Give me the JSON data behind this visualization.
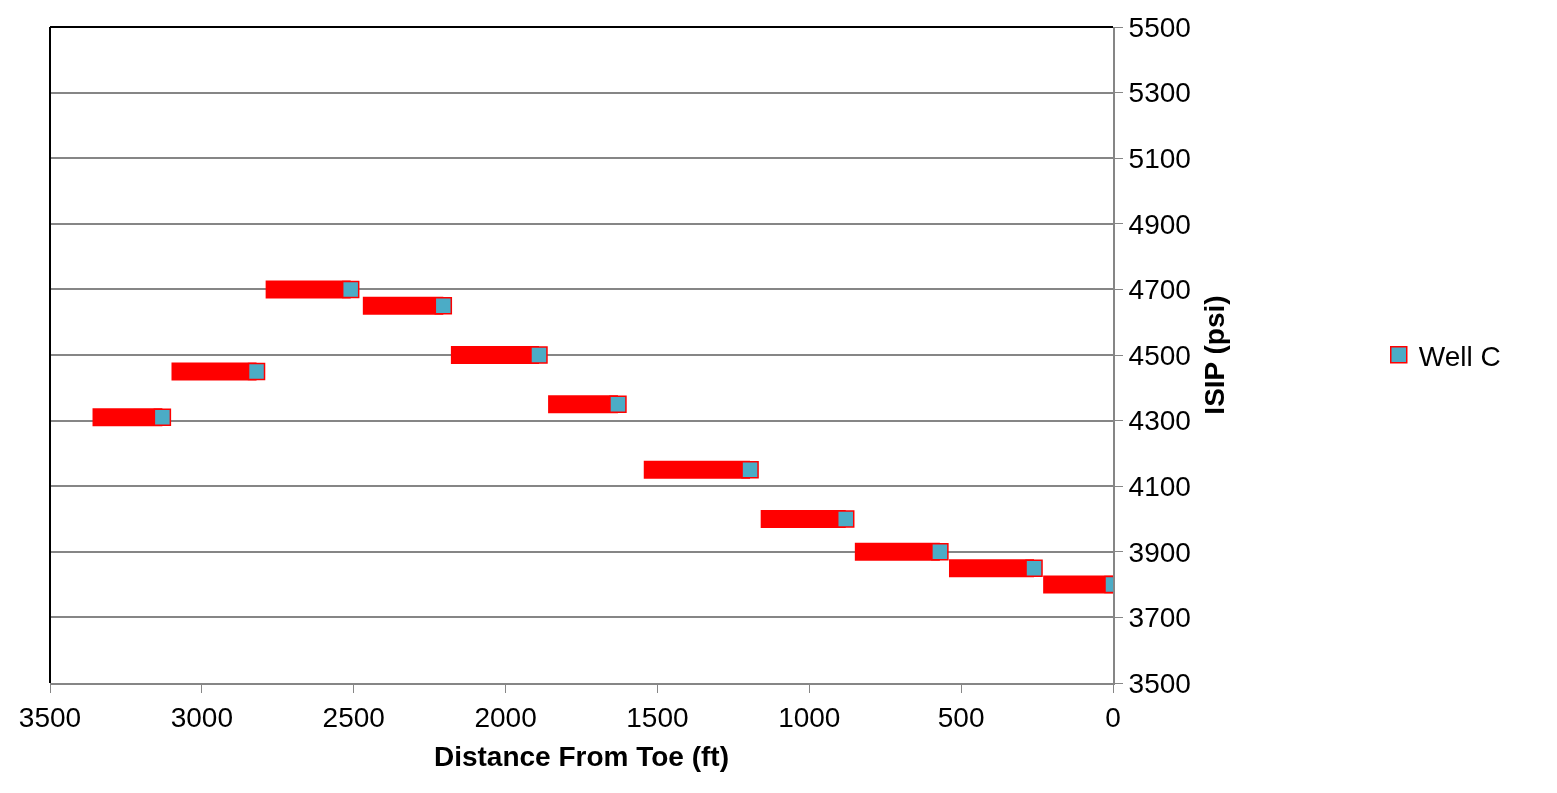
{
  "chart_data": {
    "type": "scatter",
    "xlabel": "Distance From Toe (ft)",
    "ylabel": "ISIP (psi)",
    "xlim": [
      3500,
      0
    ],
    "xticks": [
      3500,
      3000,
      2500,
      2000,
      1500,
      1000,
      500,
      0
    ],
    "ylim": [
      3500,
      5500
    ],
    "yticks": [
      3500,
      3700,
      3900,
      4100,
      4300,
      4500,
      4700,
      4900,
      5100,
      5300,
      5500
    ],
    "grid": "y",
    "legend": "right",
    "marker": "square",
    "series": [
      {
        "name": "Well C",
        "color": "#4bacc6",
        "x": [
          3130,
          2820,
          2510,
          2205,
          1890,
          1630,
          1195,
          880,
          570,
          260,
          0
        ],
        "values": [
          4310,
          4450,
          4700,
          4650,
          4500,
          4350,
          4150,
          4000,
          3900,
          3850,
          3800
        ],
        "xerrors": [
          [
            3130,
            3360
          ],
          [
            2820,
            3100
          ],
          [
            2510,
            2790
          ],
          [
            2205,
            2470
          ],
          [
            1890,
            2180
          ],
          [
            1630,
            1860
          ],
          [
            1195,
            1545
          ],
          [
            880,
            1160
          ],
          [
            570,
            850
          ],
          [
            260,
            540
          ],
          [
            0,
            230
          ]
        ]
      }
    ]
  }
}
